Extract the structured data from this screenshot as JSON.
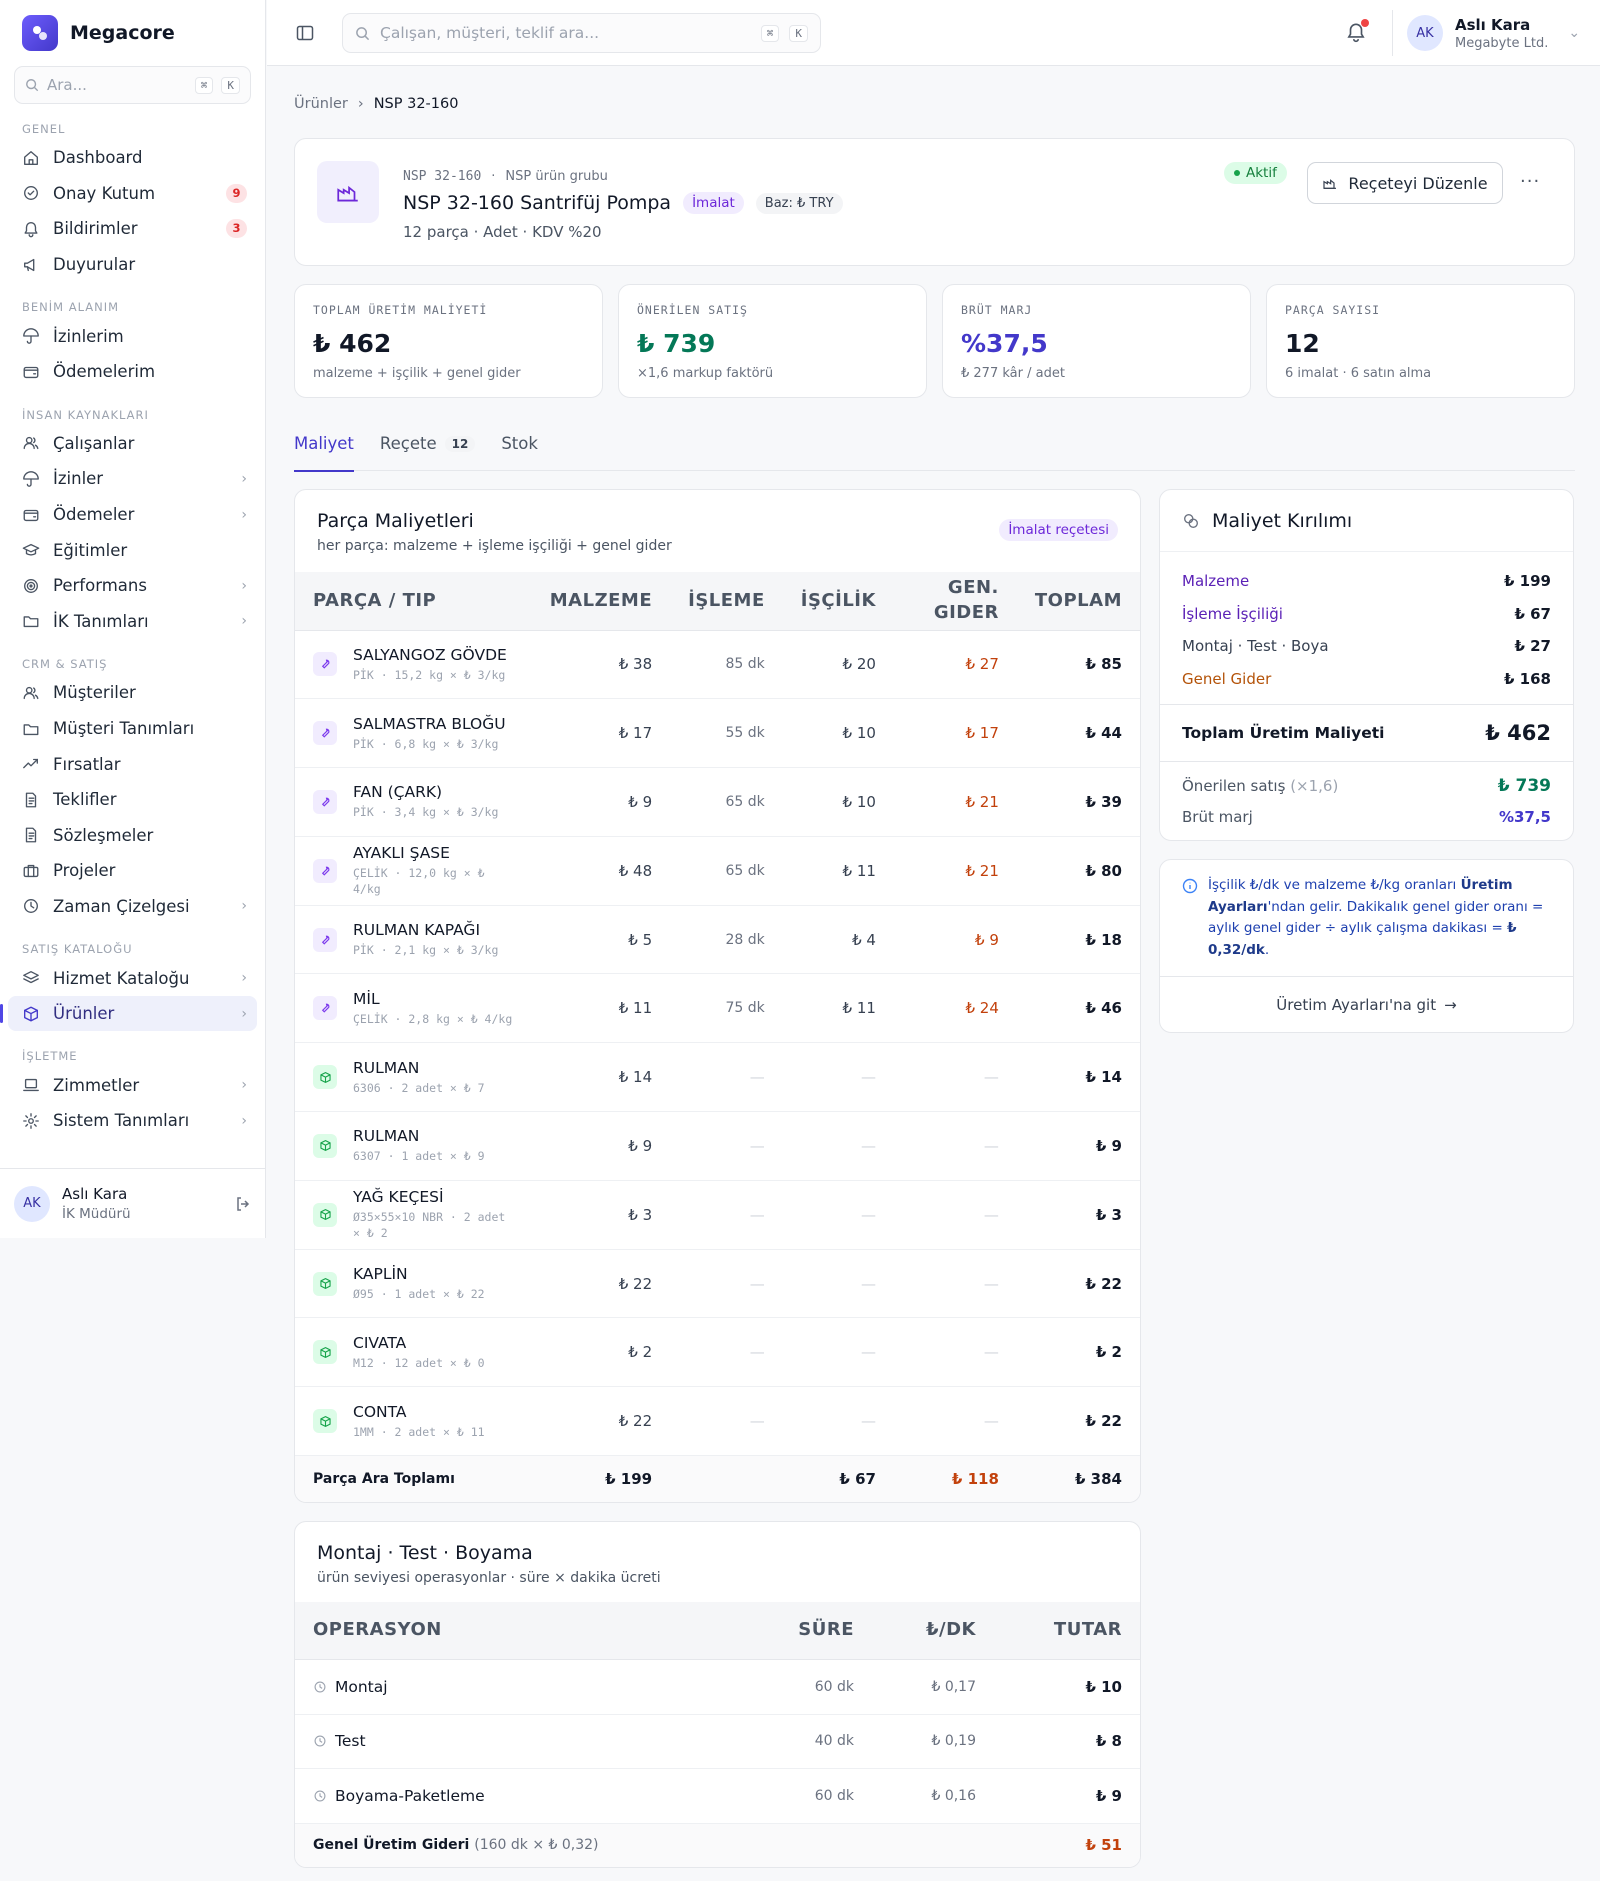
{
  "brand": {
    "name": "Megacore"
  },
  "sidebar": {
    "search_placeholder": "Ara...",
    "kbd1": "⌘",
    "kbd2": "K",
    "groups": [
      {
        "title": "GENEL",
        "items": [
          {
            "label": "Dashboard",
            "icon": "home-icon"
          },
          {
            "label": "Onay Kutum",
            "icon": "check-circle-icon",
            "badge": "9"
          },
          {
            "label": "Bildirimler",
            "icon": "bell-icon",
            "badge": "3"
          },
          {
            "label": "Duyurular",
            "icon": "megaphone-icon"
          }
        ]
      },
      {
        "title": "BENİM ALANIM",
        "items": [
          {
            "label": "İzinlerim",
            "icon": "umbrella-icon"
          },
          {
            "label": "Ödemelerim",
            "icon": "wallet-icon"
          }
        ]
      },
      {
        "title": "İNSAN KAYNAKLARI",
        "items": [
          {
            "label": "Çalışanlar",
            "icon": "users-icon"
          },
          {
            "label": "İzinler",
            "icon": "umbrella-icon",
            "chevron": true
          },
          {
            "label": "Ödemeler",
            "icon": "wallet-icon",
            "chevron": true
          },
          {
            "label": "Eğitimler",
            "icon": "graduation-cap-icon"
          },
          {
            "label": "Performans",
            "icon": "target-icon",
            "chevron": true
          },
          {
            "label": "İK Tanımları",
            "icon": "folder-icon",
            "chevron": true
          }
        ]
      },
      {
        "title": "CRM & SATIŞ",
        "items": [
          {
            "label": "Müşteriler",
            "icon": "users-icon"
          },
          {
            "label": "Müşteri Tanımları",
            "icon": "folder-icon"
          },
          {
            "label": "Fırsatlar",
            "icon": "trending-up-icon"
          },
          {
            "label": "Teklifler",
            "icon": "document-icon"
          },
          {
            "label": "Sözleşmeler",
            "icon": "document-icon"
          },
          {
            "label": "Projeler",
            "icon": "briefcase-icon"
          },
          {
            "label": "Zaman Çizelgesi",
            "icon": "clock-icon",
            "chevron": true
          }
        ]
      },
      {
        "title": "SATIŞ KATALOĞU",
        "items": [
          {
            "label": "Hizmet Kataloğu",
            "icon": "layers-icon",
            "chevron": true
          },
          {
            "label": "Ürünler",
            "icon": "box-icon",
            "chevron": true,
            "active": true
          }
        ]
      },
      {
        "title": "İŞLETME",
        "items": [
          {
            "label": "Zimmetler",
            "icon": "laptop-icon",
            "chevron": true
          },
          {
            "label": "Sistem Tanımları",
            "icon": "gear-icon",
            "chevron": true
          }
        ]
      }
    ],
    "user": {
      "initials": "AK",
      "name": "Aslı Kara",
      "role": "İK Müdürü"
    }
  },
  "topbar": {
    "search_placeholder": "Çalışan, müşteri, teklif ara...",
    "kbd1": "⌘",
    "kbd2": "K",
    "user": {
      "initials": "AK",
      "name": "Aslı Kara",
      "company": "Megabyte Ltd."
    }
  },
  "breadcrumb": {
    "parent": "Ürünler",
    "current": "NSP 32-160"
  },
  "product": {
    "code": "NSP 32-160",
    "group": "NSP ürün grubu",
    "title": "NSP 32-160 Santrifüj Pompa",
    "type_tag": "İmalat",
    "base_tag": "Baz: ₺ TRY",
    "subtitle": "12 parça · Adet · KDV %20",
    "status": "Aktif",
    "edit_button": "Reçeteyi Düzenle",
    "more": "···"
  },
  "stats": [
    {
      "label": "TOPLAM ÜRETİM MALİYETİ",
      "value": "₺ 462",
      "sub": "malzeme + işçilik + genel gider",
      "color": "#111827"
    },
    {
      "label": "ÖNERİLEN SATIŞ",
      "value": "₺ 739",
      "sub": "×1,6 markup faktörü",
      "color": "#047857"
    },
    {
      "label": "BRÜT MARJ",
      "value": "%37,5",
      "sub": "₺ 277 kâr / adet",
      "color": "#4338ca"
    },
    {
      "label": "PARÇA SAYISI",
      "value": "12",
      "sub": "6 imalat · 6 satın alma",
      "color": "#111827"
    }
  ],
  "tabs": [
    {
      "label": "Maliyet"
    },
    {
      "label": "Reçete",
      "count": "12"
    },
    {
      "label": "Stok"
    }
  ],
  "parts": {
    "title": "Parça Maliyetleri",
    "subtitle": "her parça: malzeme + işleme işçiliği + genel gider",
    "tag": "İmalat reçetesi",
    "headers": {
      "part": "PARÇA / TIP",
      "material": "MALZEME",
      "process": "İŞLEME",
      "labor": "İŞÇİLİK",
      "overhead": "GEN. GIDER",
      "total": "TOPLAM"
    },
    "rows": [
      {
        "kind": "mfg",
        "name": "SALYANGOZ GÖVDE",
        "spec": "PİK · 15,2 kg × ₺ 3/kg",
        "material": "₺ 38",
        "process": "85 dk",
        "labor": "₺ 20",
        "overhead": "₺ 27",
        "total": "₺ 85"
      },
      {
        "kind": "mfg",
        "name": "SALMASTRA BLOĞU",
        "spec": "PİK · 6,8 kg × ₺ 3/kg",
        "material": "₺ 17",
        "process": "55 dk",
        "labor": "₺ 10",
        "overhead": "₺ 17",
        "total": "₺ 44"
      },
      {
        "kind": "mfg",
        "name": "FAN (ÇARK)",
        "spec": "PİK · 3,4 kg × ₺ 3/kg",
        "material": "₺ 9",
        "process": "65 dk",
        "labor": "₺ 10",
        "overhead": "₺ 21",
        "total": "₺ 39"
      },
      {
        "kind": "mfg",
        "name": "AYAKLI ŞASE",
        "spec": "ÇELİK · 12,0 kg × ₺ 4/kg",
        "material": "₺ 48",
        "process": "65 dk",
        "labor": "₺ 11",
        "overhead": "₺ 21",
        "total": "₺ 80"
      },
      {
        "kind": "mfg",
        "name": "RULMAN KAPAĞI",
        "spec": "PİK · 2,1 kg × ₺ 3/kg",
        "material": "₺ 5",
        "process": "28 dk",
        "labor": "₺ 4",
        "overhead": "₺ 9",
        "total": "₺ 18"
      },
      {
        "kind": "mfg",
        "name": "MİL",
        "spec": "ÇELİK · 2,8 kg × ₺ 4/kg",
        "material": "₺ 11",
        "process": "75 dk",
        "labor": "₺ 11",
        "overhead": "₺ 24",
        "total": "₺ 46"
      },
      {
        "kind": "buy",
        "name": "RULMAN",
        "spec": "6306 · 2 adet × ₺ 7",
        "material": "₺ 14",
        "process": "—",
        "labor": "—",
        "overhead": "—",
        "total": "₺ 14"
      },
      {
        "kind": "buy",
        "name": "RULMAN",
        "spec": "6307 · 1 adet × ₺ 9",
        "material": "₺ 9",
        "process": "—",
        "labor": "—",
        "overhead": "—",
        "total": "₺ 9"
      },
      {
        "kind": "buy",
        "name": "YAĞ KEÇESİ",
        "spec": "Ø35×55×10 NBR · 2 adet × ₺ 2",
        "material": "₺ 3",
        "process": "—",
        "labor": "—",
        "overhead": "—",
        "total": "₺ 3"
      },
      {
        "kind": "buy",
        "name": "KAPLİN",
        "spec": "Ø95 · 1 adet × ₺ 22",
        "material": "₺ 22",
        "process": "—",
        "labor": "—",
        "overhead": "—",
        "total": "₺ 22"
      },
      {
        "kind": "buy",
        "name": "CIVATA",
        "spec": "M12 · 12 adet × ₺ 0",
        "material": "₺ 2",
        "process": "—",
        "labor": "—",
        "overhead": "—",
        "total": "₺ 2"
      },
      {
        "kind": "buy",
        "name": "CONTA",
        "spec": "1MM · 2 adet × ₺ 11",
        "material": "₺ 22",
        "process": "—",
        "labor": "—",
        "overhead": "—",
        "total": "₺ 22"
      }
    ],
    "subtotal": {
      "label": "Parça Ara Toplamı",
      "material": "₺ 199",
      "labor": "₺ 67",
      "overhead": "₺ 118",
      "total": "₺ 384"
    }
  },
  "operations": {
    "title": "Montaj · Test · Boyama",
    "subtitle": "ürün seviyesi operasyonlar · süre × dakika ücreti",
    "headers": {
      "op": "OPERASYON",
      "duration": "SÜRE",
      "rate": "₺/DK",
      "amount": "TUTAR"
    },
    "rows": [
      {
        "name": "Montaj",
        "duration": "60 dk",
        "rate": "₺ 0,17",
        "amount": "₺ 10"
      },
      {
        "name": "Test",
        "duration": "40 dk",
        "rate": "₺ 0,19",
        "amount": "₺ 8"
      },
      {
        "name": "Boyama-Paketleme",
        "duration": "60 dk",
        "rate": "₺ 0,16",
        "amount": "₺ 9"
      }
    ],
    "footer": {
      "label": "Genel Üretim Gideri",
      "detail": "(160 dk × ₺ 0,32)",
      "amount": "₺ 51"
    }
  },
  "breakdown": {
    "title": "Maliyet Kırılımı",
    "rows": [
      {
        "label": "Malzeme",
        "value": "₺ 199",
        "color": "#5b21b6"
      },
      {
        "label": "İşleme İşçiliği",
        "value": "₺ 67",
        "color": "#5b21b6"
      },
      {
        "label": "Montaj · Test · Boya",
        "value": "₺ 27",
        "color": "#374151"
      },
      {
        "label": "Genel Gider",
        "value": "₺ 168",
        "color": "#b45309"
      }
    ],
    "total_label": "Toplam Üretim Maliyeti",
    "total_value": "₺ 462",
    "suggested_label": "Önerilen satış",
    "suggested_factor": "(×1,6)",
    "suggested_value": "₺ 739",
    "margin_label": "Brüt marj",
    "margin_value": "%37,5"
  },
  "note": {
    "text1": "İşçilik ₺/dk ve malzeme ₺/kg oranları ",
    "bold1": "Üretim Ayarları",
    "text2": "'ndan gelir. Dakikalık genel gider oranı = aylık genel gider ÷ aylık çalışma dakikası = ",
    "bold2": "₺ 0,32/dk",
    "text3": ".",
    "link": "Üretim Ayarları'na git"
  },
  "colors": {
    "accent": "#4338ca",
    "green": "#047857",
    "orange": "#c2410c",
    "purple": "#6d28d9"
  }
}
